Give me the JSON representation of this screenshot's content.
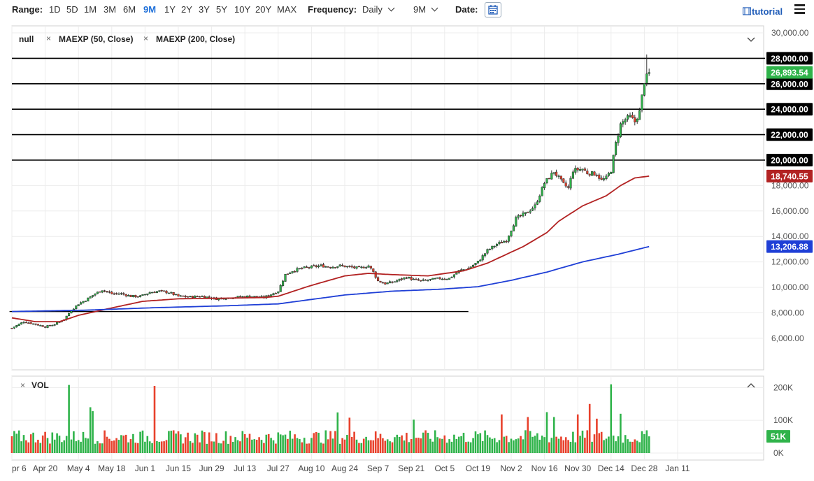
{
  "toolbar": {
    "range_label": "Range:",
    "ranges": [
      "1D",
      "5D",
      "1M",
      "3M",
      "6M",
      "9M",
      "1Y",
      "2Y",
      "3Y",
      "5Y",
      "10Y",
      "20Y",
      "MAX"
    ],
    "active_range": "9M",
    "frequency_label": "Frequency:",
    "frequency_value": "Daily",
    "period_value": "9M",
    "date_label": "Date:",
    "tutorial_label": "tutorial"
  },
  "legend": {
    "series_label": "null",
    "ma50_label": "MAEXP (50, Close)",
    "ma200_label": "MAEXP (200, Close)",
    "vol_label": "VOL"
  },
  "colors": {
    "up": "#2fb34a",
    "down": "#e8412c",
    "ma50": "#b22222",
    "ma200": "#1f3fd6",
    "last_price_badge": "#2fb34a",
    "ma50_badge": "#b22222",
    "ma200_badge": "#1f3fd6",
    "level_badge": "#000000"
  },
  "chart_data": {
    "type": "candlestick",
    "price_axis": {
      "ylim": [
        5000,
        30000
      ],
      "ticks": [
        "30,000.00",
        "28,000.00",
        "26,000.00",
        "24,000.00",
        "22,000.00",
        "20,000.00",
        "18,000.00",
        "16,000.00",
        "14,000.00",
        "12,000.00",
        "10,000.00",
        "8,000.00",
        "6,000.00"
      ],
      "tick_values": [
        30000,
        28000,
        26000,
        24000,
        22000,
        20000,
        18000,
        16000,
        14000,
        12000,
        10000,
        8000,
        6000
      ]
    },
    "x_axis": {
      "labels": [
        "pr 6",
        "Apr 20",
        "May 4",
        "May 18",
        "Jun 1",
        "Jun 15",
        "Jun 29",
        "Jul 13",
        "Jul 27",
        "Aug 10",
        "Aug 24",
        "Sep 7",
        "Sep 21",
        "Oct 5",
        "Oct 19",
        "Nov 2",
        "Nov 16",
        "Nov 30",
        "Dec 14",
        "Dec 28",
        "Jan 11"
      ],
      "label_days": [
        0,
        14,
        28,
        42,
        56,
        70,
        84,
        98,
        112,
        126,
        140,
        154,
        168,
        182,
        196,
        210,
        224,
        238,
        252,
        266,
        280
      ]
    },
    "horizontal_levels": [
      {
        "value": 28000,
        "label": "28,000.00"
      },
      {
        "value": 26000,
        "label": "26,000.00"
      },
      {
        "value": 24000,
        "label": "24,000.00"
      },
      {
        "value": 22000,
        "label": "22,000.00"
      },
      {
        "value": 20000,
        "label": "20,000.00"
      }
    ],
    "support_line": {
      "value": 8100,
      "from_day": -1,
      "to_day": 192
    },
    "last_price": {
      "value": 26893.54,
      "label": "26,893.54"
    },
    "ma50_last": {
      "value": 18740.55,
      "label": "18,740.55"
    },
    "ma200_last": {
      "value": 13206.88,
      "label": "13,206.88"
    },
    "close_anchors": [
      [
        0,
        6800
      ],
      [
        5,
        7300
      ],
      [
        10,
        7100
      ],
      [
        14,
        6900
      ],
      [
        18,
        7100
      ],
      [
        22,
        7500
      ],
      [
        25,
        8200
      ],
      [
        28,
        8700
      ],
      [
        31,
        9000
      ],
      [
        35,
        9500
      ],
      [
        38,
        9800
      ],
      [
        42,
        9500
      ],
      [
        46,
        9500
      ],
      [
        50,
        9300
      ],
      [
        54,
        9300
      ],
      [
        58,
        9600
      ],
      [
        62,
        9700
      ],
      [
        66,
        9600
      ],
      [
        70,
        9300
      ],
      [
        75,
        9250
      ],
      [
        80,
        9300
      ],
      [
        86,
        9100
      ],
      [
        92,
        9200
      ],
      [
        100,
        9300
      ],
      [
        106,
        9200
      ],
      [
        112,
        9700
      ],
      [
        115,
        11000
      ],
      [
        118,
        11300
      ],
      [
        122,
        11500
      ],
      [
        126,
        11600
      ],
      [
        130,
        11700
      ],
      [
        134,
        11600
      ],
      [
        138,
        11700
      ],
      [
        142,
        11600
      ],
      [
        146,
        11500
      ],
      [
        148,
        11600
      ],
      [
        150,
        11700
      ],
      [
        152,
        11200
      ],
      [
        154,
        10500
      ],
      [
        157,
        10300
      ],
      [
        160,
        10400
      ],
      [
        163,
        10600
      ],
      [
        166,
        10800
      ],
      [
        169,
        10600
      ],
      [
        172,
        10500
      ],
      [
        176,
        10600
      ],
      [
        180,
        10700
      ],
      [
        184,
        10700
      ],
      [
        188,
        11300
      ],
      [
        192,
        11500
      ],
      [
        196,
        12000
      ],
      [
        200,
        12900
      ],
      [
        204,
        13400
      ],
      [
        208,
        13700
      ],
      [
        212,
        15400
      ],
      [
        216,
        15800
      ],
      [
        220,
        16400
      ],
      [
        224,
        18200
      ],
      [
        228,
        19100
      ],
      [
        232,
        18100
      ],
      [
        234,
        17800
      ],
      [
        236,
        19200
      ],
      [
        240,
        19300
      ],
      [
        242,
        19000
      ],
      [
        246,
        18900
      ],
      [
        248,
        18400
      ],
      [
        250,
        18600
      ],
      [
        252,
        19200
      ],
      [
        254,
        21300
      ],
      [
        256,
        22800
      ],
      [
        258,
        23200
      ],
      [
        260,
        23400
      ],
      [
        262,
        23000
      ],
      [
        264,
        23800
      ],
      [
        266,
        26200
      ],
      [
        268,
        26893
      ]
    ],
    "ma50_anchors": [
      [
        0,
        7600
      ],
      [
        10,
        7300
      ],
      [
        20,
        7300
      ],
      [
        28,
        7800
      ],
      [
        40,
        8300
      ],
      [
        55,
        8900
      ],
      [
        70,
        9100
      ],
      [
        90,
        9150
      ],
      [
        106,
        9200
      ],
      [
        112,
        9300
      ],
      [
        125,
        10100
      ],
      [
        140,
        10900
      ],
      [
        150,
        11100
      ],
      [
        160,
        11000
      ],
      [
        175,
        10900
      ],
      [
        190,
        11300
      ],
      [
        200,
        11900
      ],
      [
        215,
        13200
      ],
      [
        225,
        14300
      ],
      [
        230,
        15200
      ],
      [
        240,
        16400
      ],
      [
        250,
        17200
      ],
      [
        256,
        18000
      ],
      [
        262,
        18600
      ],
      [
        268,
        18740
      ]
    ],
    "ma200_anchors": [
      [
        0,
        8100
      ],
      [
        30,
        8200
      ],
      [
        60,
        8400
      ],
      [
        90,
        8550
      ],
      [
        112,
        8700
      ],
      [
        140,
        9400
      ],
      [
        160,
        9700
      ],
      [
        180,
        9850
      ],
      [
        196,
        10050
      ],
      [
        210,
        10550
      ],
      [
        225,
        11200
      ],
      [
        240,
        12000
      ],
      [
        255,
        12600
      ],
      [
        268,
        13206
      ]
    ],
    "volume_axis": {
      "ylim": [
        0,
        220000
      ],
      "ticks": [
        "200K",
        "100K",
        "0K"
      ],
      "tick_values": [
        200000,
        100000,
        0
      ]
    },
    "volume_last": {
      "value": 51000,
      "label": "51K"
    },
    "volume_spikes": [
      [
        24,
        208000
      ],
      [
        33,
        140000
      ],
      [
        34,
        128000
      ],
      [
        60,
        205000
      ],
      [
        137,
        124000
      ],
      [
        142,
        108000
      ],
      [
        169,
        102000
      ],
      [
        206,
        118000
      ],
      [
        217,
        110000
      ],
      [
        225,
        125000
      ],
      [
        228,
        110000
      ],
      [
        238,
        118000
      ],
      [
        243,
        150000
      ],
      [
        246,
        105000
      ],
      [
        252,
        210000
      ],
      [
        256,
        120000
      ]
    ]
  }
}
